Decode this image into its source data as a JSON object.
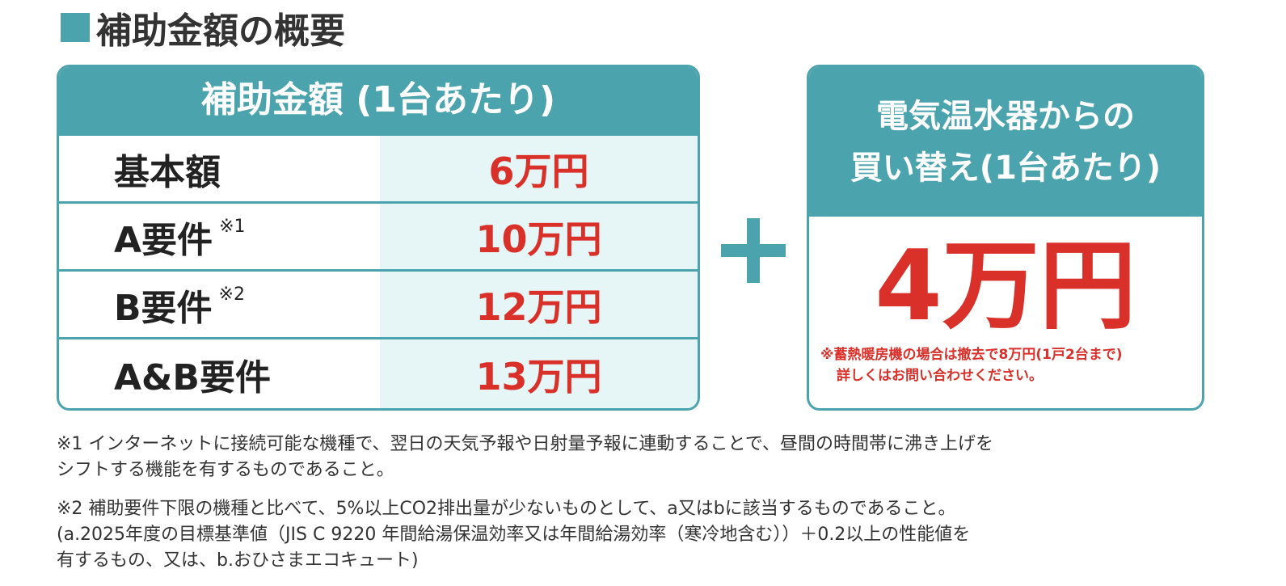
{
  "title": "補助金額の概要",
  "table": {
    "header": "補助金額 (1台あたり)",
    "rows": [
      {
        "label": "基本額",
        "amount": "6万円"
      },
      {
        "label": "A要件",
        "note": "※1",
        "amount": "10万円"
      },
      {
        "label": "B要件",
        "note": "※2",
        "amount": "12万円"
      },
      {
        "label": "A&B要件",
        "amount": "13万円"
      }
    ]
  },
  "replacement": {
    "header_lines": [
      "電気温水器からの",
      "買い替え(1台あたり)"
    ],
    "amount": "4万円",
    "notes": [
      "※蓄熱暖房機の場合は撤去で8万円(1戸2台まで)",
      "詳しくはお問い合わせください。"
    ]
  },
  "footnotes": [
    [
      "※1 インターネットに接続可能な機種で、翌日の天気予報や日射量予報に連動することで、昼間の時間帯に沸き上げを",
      "シフトする機能を有するものであること。"
    ],
    [
      "※2 補助要件下限の機種と比べて、5%以上CO2排出量が少ないものとして、a又はbに該当するものであること。",
      "(a.2025年度の目標基準値（JIS C 9220 年間給湯保温効率又は年間給湯効率（寒冷地含む））＋0.2以上の性能値を",
      "有するもの、又は、b.おひさまエコキュート)"
    ]
  ]
}
